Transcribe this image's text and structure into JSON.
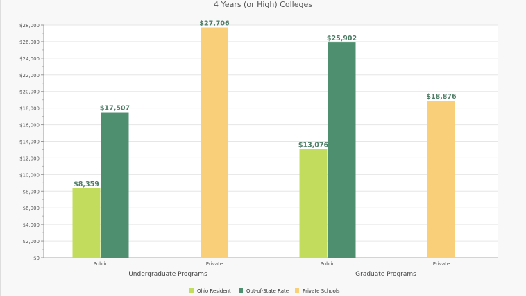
{
  "chart_data": {
    "type": "bar",
    "title": "4 Years (or High)  Colleges",
    "groups": [
      {
        "name": "Undergraduate Programs",
        "categories": [
          "Public",
          "Private"
        ]
      },
      {
        "name": "Graduate Programs",
        "categories": [
          "Public",
          "Private"
        ]
      }
    ],
    "series": [
      {
        "name": "Ohio Resident",
        "color": "#c2dc5e",
        "values": [
          [
            8359,
            null
          ],
          [
            13076,
            null
          ]
        ]
      },
      {
        "name": "Out-of-State Rate",
        "color": "#4e8f6f",
        "values": [
          [
            17507,
            null
          ],
          [
            25902,
            null
          ]
        ]
      },
      {
        "name": "Private Schools",
        "color": "#f9cf7a",
        "values": [
          [
            null,
            27706
          ],
          [
            null,
            18876
          ]
        ]
      }
    ],
    "data_labels": {
      "Ohio Resident": [
        "$8,359",
        "$13,076"
      ],
      "Out-of-State Rate": [
        "$17,507",
        "$25,902"
      ],
      "Private Schools": [
        "$27,706",
        "$18,876"
      ]
    },
    "yticks": [
      "$0",
      "$2,000",
      "$4,000",
      "$6,000",
      "$8,000",
      "$10,000",
      "$12,000",
      "$14,000",
      "$16,000",
      "$18,000",
      "$20,000",
      "$22,000",
      "$24,000",
      "$26,000",
      "$28,000"
    ],
    "ylim": [
      0,
      28000
    ],
    "grid": true,
    "legend": "bottom-center",
    "label_color": "#4e7d66"
  }
}
